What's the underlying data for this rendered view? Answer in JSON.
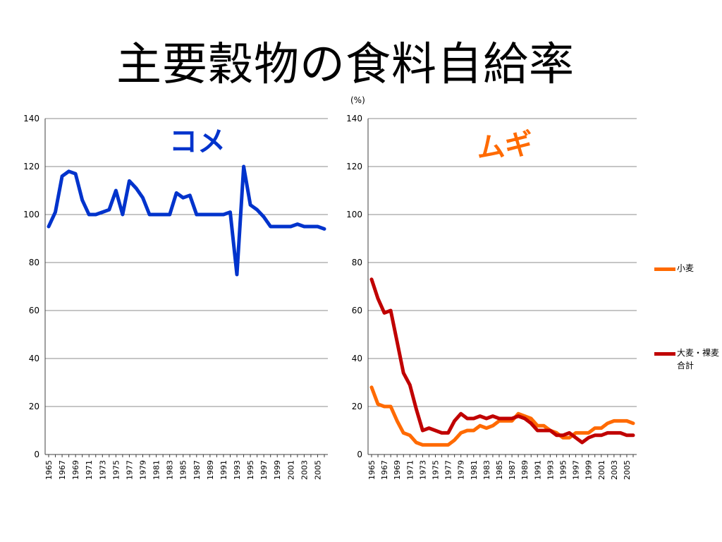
{
  "page": {
    "title": "主要穀物の食料自給率",
    "unit": "(%)"
  },
  "colors": {
    "rice": "#0033cc",
    "wheat": "#ff6a00",
    "barley": "#c00000",
    "grid": "#8c8c8c",
    "axis": "#404040"
  },
  "chart_data": [
    {
      "type": "line",
      "title": "コメ",
      "xlabel": "",
      "ylabel": "",
      "ylim": [
        0,
        140
      ],
      "yticks": [
        0,
        20,
        40,
        60,
        80,
        100,
        120,
        140
      ],
      "xticks": [
        "1965",
        "1967",
        "1969",
        "1971",
        "1973",
        "1975",
        "1977",
        "1979",
        "1981",
        "1983",
        "1985",
        "1987",
        "1989",
        "1991",
        "1993",
        "1995",
        "1997",
        "1999",
        "2001",
        "2003",
        "2005"
      ],
      "x": [
        1965,
        1966,
        1967,
        1968,
        1969,
        1970,
        1971,
        1972,
        1973,
        1974,
        1975,
        1976,
        1977,
        1978,
        1979,
        1980,
        1981,
        1982,
        1983,
        1984,
        1985,
        1986,
        1987,
        1988,
        1989,
        1990,
        1991,
        1992,
        1993,
        1994,
        1995,
        1996,
        1997,
        1998,
        1999,
        2000,
        2001,
        2002,
        2003,
        2004,
        2005,
        2006
      ],
      "grid": true,
      "series": [
        {
          "name": "",
          "color": "#0033cc",
          "values": [
            95,
            101,
            116,
            118,
            117,
            106,
            100,
            100,
            101,
            102,
            110,
            100,
            114,
            111,
            107,
            100,
            100,
            100,
            100,
            109,
            107,
            108,
            100,
            100,
            100,
            100,
            100,
            101,
            75,
            120,
            104,
            102,
            99,
            95,
            95,
            95,
            95,
            96,
            95,
            95,
            95,
            94
          ]
        }
      ]
    },
    {
      "type": "line",
      "title": "ムギ",
      "xlabel": "",
      "ylabel": "",
      "ylim": [
        0,
        140
      ],
      "yticks": [
        0,
        20,
        40,
        60,
        80,
        100,
        120,
        140
      ],
      "xticks": [
        "1965",
        "1967",
        "1969",
        "1971",
        "1973",
        "1975",
        "1977",
        "1979",
        "1981",
        "1983",
        "1985",
        "1987",
        "1989",
        "1991",
        "1993",
        "1995",
        "1997",
        "1999",
        "2001",
        "2003",
        "2005"
      ],
      "x": [
        1965,
        1966,
        1967,
        1968,
        1969,
        1970,
        1971,
        1972,
        1973,
        1974,
        1975,
        1976,
        1977,
        1978,
        1979,
        1980,
        1981,
        1982,
        1983,
        1984,
        1985,
        1986,
        1987,
        1988,
        1989,
        1990,
        1991,
        1992,
        1993,
        1994,
        1995,
        1996,
        1997,
        1998,
        1999,
        2000,
        2001,
        2002,
        2003,
        2004,
        2005,
        2006
      ],
      "grid": true,
      "legend": "right",
      "series": [
        {
          "name": "小麦",
          "color": "#ff6a00",
          "values": [
            28,
            21,
            20,
            20,
            14,
            9,
            8,
            5,
            4,
            4,
            4,
            4,
            4,
            6,
            9,
            10,
            10,
            12,
            11,
            12,
            14,
            14,
            14,
            17,
            16,
            15,
            12,
            12,
            10,
            9,
            7,
            7,
            9,
            9,
            9,
            11,
            11,
            13,
            14,
            14,
            14,
            13
          ]
        },
        {
          "name": "大麦・裸麦合計",
          "color": "#c00000",
          "values": [
            73,
            65,
            59,
            60,
            47,
            34,
            29,
            19,
            10,
            11,
            10,
            9,
            9,
            14,
            17,
            15,
            15,
            16,
            15,
            16,
            15,
            15,
            15,
            16,
            15,
            13,
            10,
            10,
            10,
            8,
            8,
            9,
            7,
            5,
            7,
            8,
            8,
            9,
            9,
            9,
            8,
            8
          ]
        }
      ]
    }
  ]
}
